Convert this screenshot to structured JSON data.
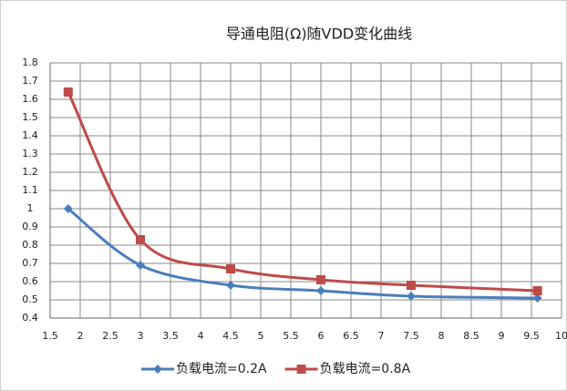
{
  "chart_data": {
    "type": "line",
    "title": "导通电阻(Ω)随VDD变化曲线",
    "x": [
      1.8,
      3,
      4.5,
      6,
      7.5,
      9.6
    ],
    "series": [
      {
        "name": "负载电流=0.2A",
        "color": "#4a7ebb",
        "marker": "diamond",
        "values": [
          1.0,
          0.69,
          0.58,
          0.55,
          0.52,
          0.51
        ]
      },
      {
        "name": "负载电流=0.8A",
        "color": "#be4b48",
        "marker": "square",
        "values": [
          1.64,
          0.83,
          0.67,
          0.61,
          0.58,
          0.55
        ]
      }
    ],
    "xlim": [
      1.5,
      10
    ],
    "xticks": [
      1.5,
      2,
      2.5,
      3,
      3.5,
      4,
      4.5,
      5,
      5.5,
      6,
      6.5,
      7,
      7.5,
      8,
      8.5,
      9,
      9.5,
      10
    ],
    "ylim": [
      0.4,
      1.8
    ],
    "yticks": [
      0.4,
      0.5,
      0.6,
      0.7,
      0.8,
      0.9,
      1,
      1.1,
      1.2,
      1.3,
      1.4,
      1.5,
      1.6,
      1.7,
      1.8
    ],
    "grid": true,
    "smooth": true,
    "legend": "bottom"
  }
}
